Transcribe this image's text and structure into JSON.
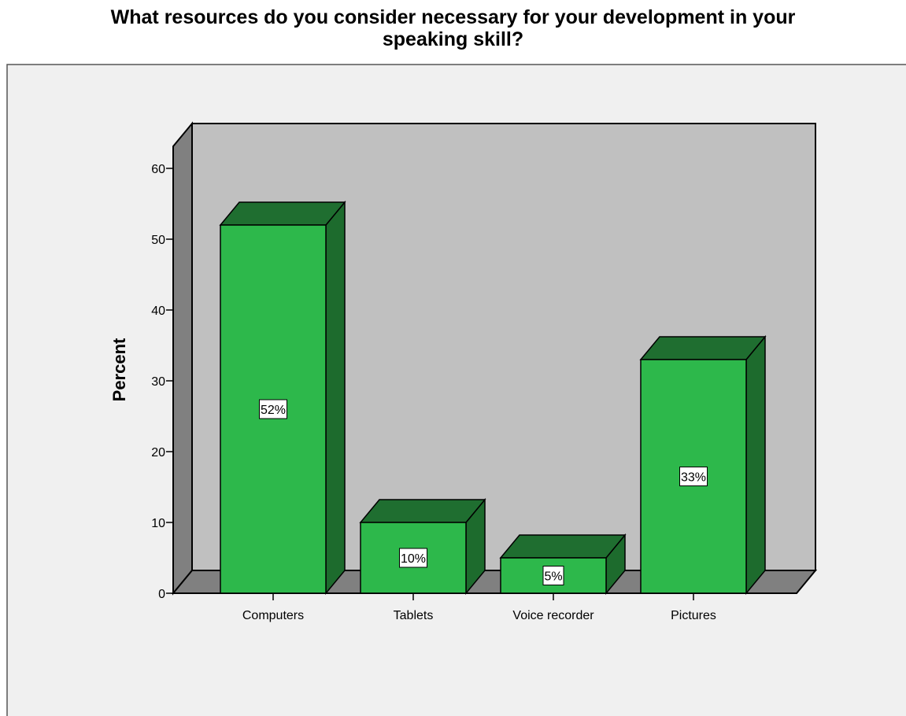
{
  "chart_data": {
    "type": "bar",
    "title_lines": [
      "What resources do you consider necessary for your development in your",
      "speaking skill?"
    ],
    "categories": [
      "Computers",
      "Tablets",
      "Voice recorder",
      "Pictures"
    ],
    "values": [
      52,
      10,
      5,
      33
    ],
    "data_labels": [
      "52%",
      "10%",
      "5%",
      "33%"
    ],
    "xlabel": "",
    "ylabel": "Percent",
    "ylim": [
      0,
      60
    ],
    "yticks": [
      0,
      10,
      20,
      30,
      40,
      50,
      60
    ],
    "grid": false,
    "style": "3d-bar",
    "colors": {
      "bar_front": "#2db84b",
      "bar_side": "#1d6b2d",
      "bar_top": "#1f6e30",
      "back_wall": "#c0c0c0",
      "side_wall": "#808080",
      "floor": "#808080",
      "plot_bg": "#f0f0f0"
    }
  }
}
